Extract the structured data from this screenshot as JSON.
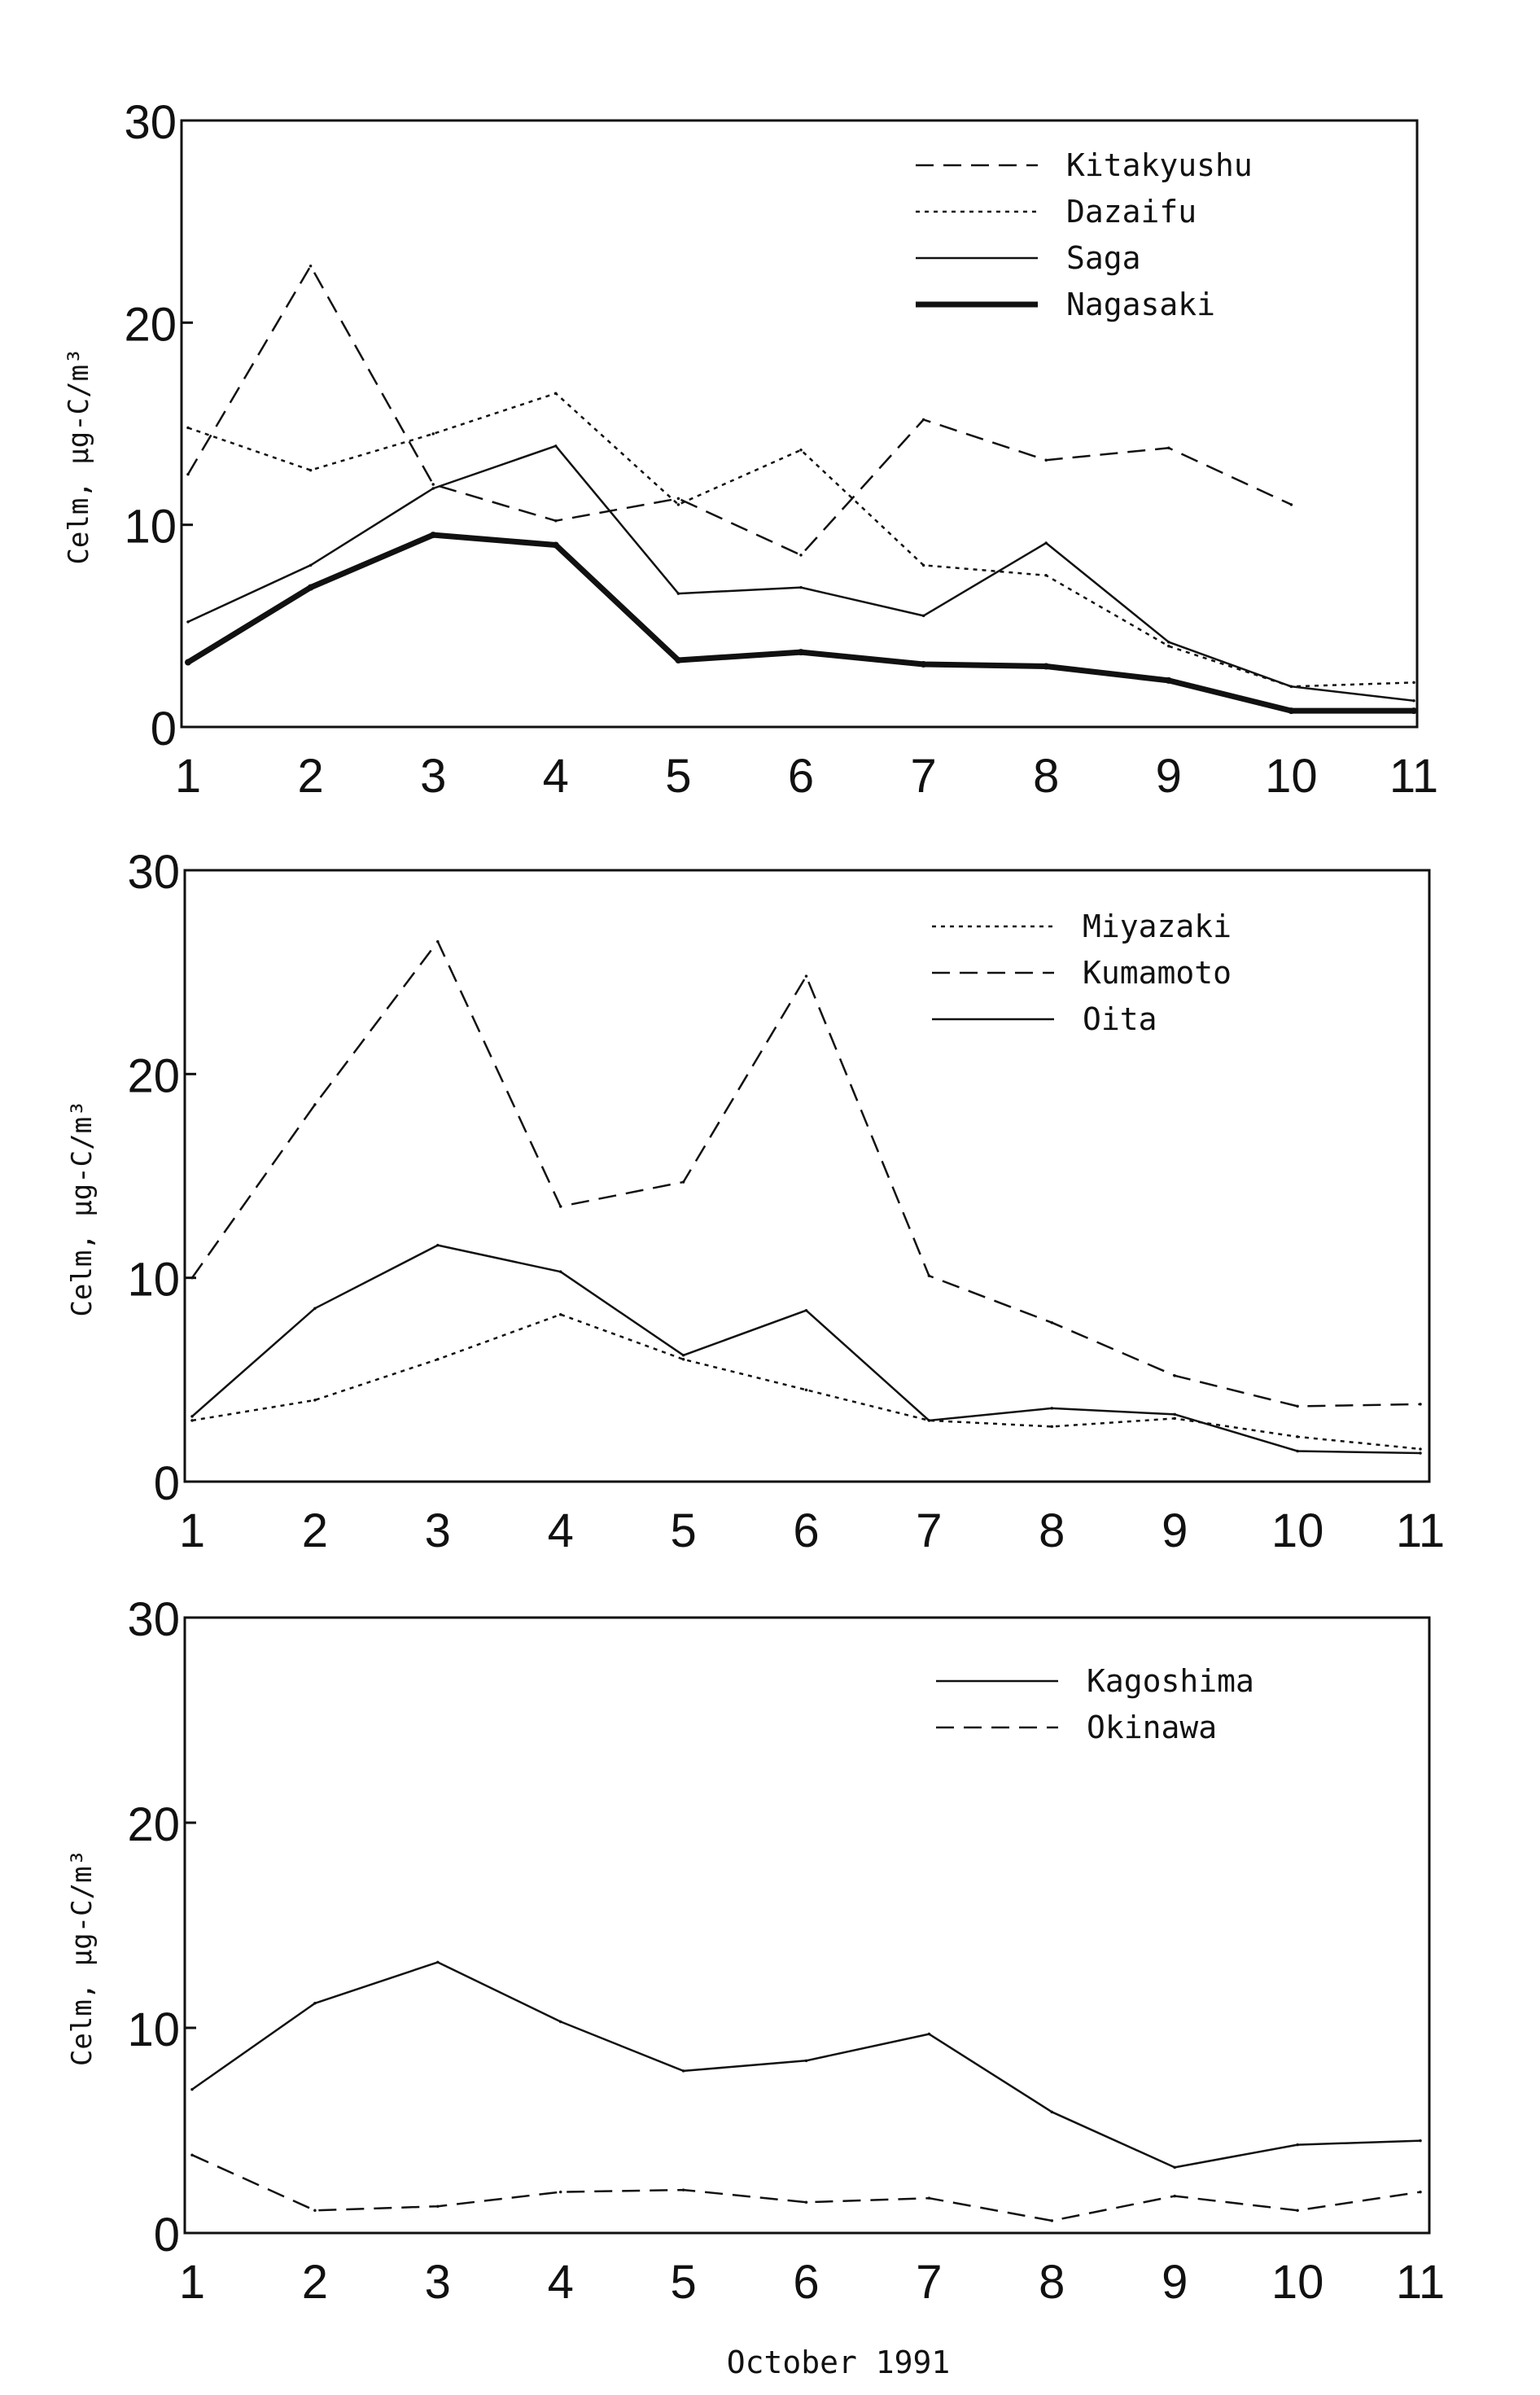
{
  "x_axis_label": "October 1991",
  "chart_data": [
    {
      "type": "line",
      "title": "",
      "ylabel": "Celm, μg-C/m³",
      "xlabel": "",
      "ylim": [
        0,
        30
      ],
      "yticks": [
        "0",
        "10",
        "20",
        "30"
      ],
      "x": [
        "1",
        "2",
        "3",
        "4",
        "5",
        "6",
        "7",
        "8",
        "9",
        "10",
        "11"
      ],
      "legend": "top-right",
      "series": [
        {
          "name": "Kitakyushu",
          "style": "dashed",
          "values": [
            12.5,
            22.8,
            12.0,
            10.2,
            11.3,
            8.5,
            15.2,
            13.2,
            13.8,
            11.0,
            null
          ]
        },
        {
          "name": "Dazaifu",
          "style": "dotted",
          "values": [
            14.8,
            12.7,
            14.5,
            16.5,
            11.0,
            13.7,
            8.0,
            7.5,
            4.0,
            2.0,
            2.2
          ]
        },
        {
          "name": "Saga",
          "style": "solid",
          "values": [
            5.2,
            8.0,
            11.8,
            13.9,
            6.6,
            6.9,
            5.5,
            9.1,
            4.2,
            2.0,
            1.3
          ]
        },
        {
          "name": "Nagasaki",
          "style": "thick",
          "values": [
            3.2,
            6.9,
            9.5,
            9.0,
            3.3,
            3.7,
            3.1,
            3.0,
            2.3,
            0.8,
            0.8
          ]
        }
      ]
    },
    {
      "type": "line",
      "title": "",
      "ylabel": "Celm, μg-C/m³",
      "xlabel": "",
      "ylim": [
        0,
        30
      ],
      "yticks": [
        "0",
        "10",
        "20",
        "30"
      ],
      "x": [
        "1",
        "2",
        "3",
        "4",
        "5",
        "6",
        "7",
        "8",
        "9",
        "10",
        "11"
      ],
      "legend": "top-right",
      "series": [
        {
          "name": "Miyazaki",
          "style": "dotted",
          "values": [
            3.0,
            4.0,
            6.0,
            8.2,
            6.0,
            4.5,
            3.0,
            2.7,
            3.1,
            2.2,
            1.6
          ]
        },
        {
          "name": "Kumamoto",
          "style": "dashed",
          "values": [
            10.0,
            18.5,
            26.5,
            13.5,
            14.7,
            24.8,
            10.1,
            7.8,
            5.2,
            3.7,
            3.8
          ]
        },
        {
          "name": "Oita",
          "style": "solid",
          "values": [
            3.2,
            8.5,
            11.6,
            10.3,
            6.2,
            8.4,
            3.0,
            3.6,
            3.3,
            1.5,
            1.4
          ]
        }
      ]
    },
    {
      "type": "line",
      "title": "",
      "ylabel": "Celm, μg-C/m³",
      "xlabel": "October 1991",
      "ylim": [
        0,
        30
      ],
      "yticks": [
        "0",
        "10",
        "20",
        "30"
      ],
      "x": [
        "1",
        "2",
        "3",
        "4",
        "5",
        "6",
        "7",
        "8",
        "9",
        "10",
        "11"
      ],
      "legend": "top-right",
      "series": [
        {
          "name": "Kagoshima",
          "style": "solid",
          "values": [
            7.0,
            11.2,
            13.2,
            10.3,
            7.9,
            8.4,
            9.7,
            5.9,
            3.2,
            4.3,
            4.5
          ]
        },
        {
          "name": "Okinawa",
          "style": "dashed",
          "values": [
            3.8,
            1.1,
            1.3,
            2.0,
            2.1,
            1.5,
            1.7,
            0.6,
            1.8,
            1.1,
            2.0
          ]
        }
      ]
    }
  ]
}
